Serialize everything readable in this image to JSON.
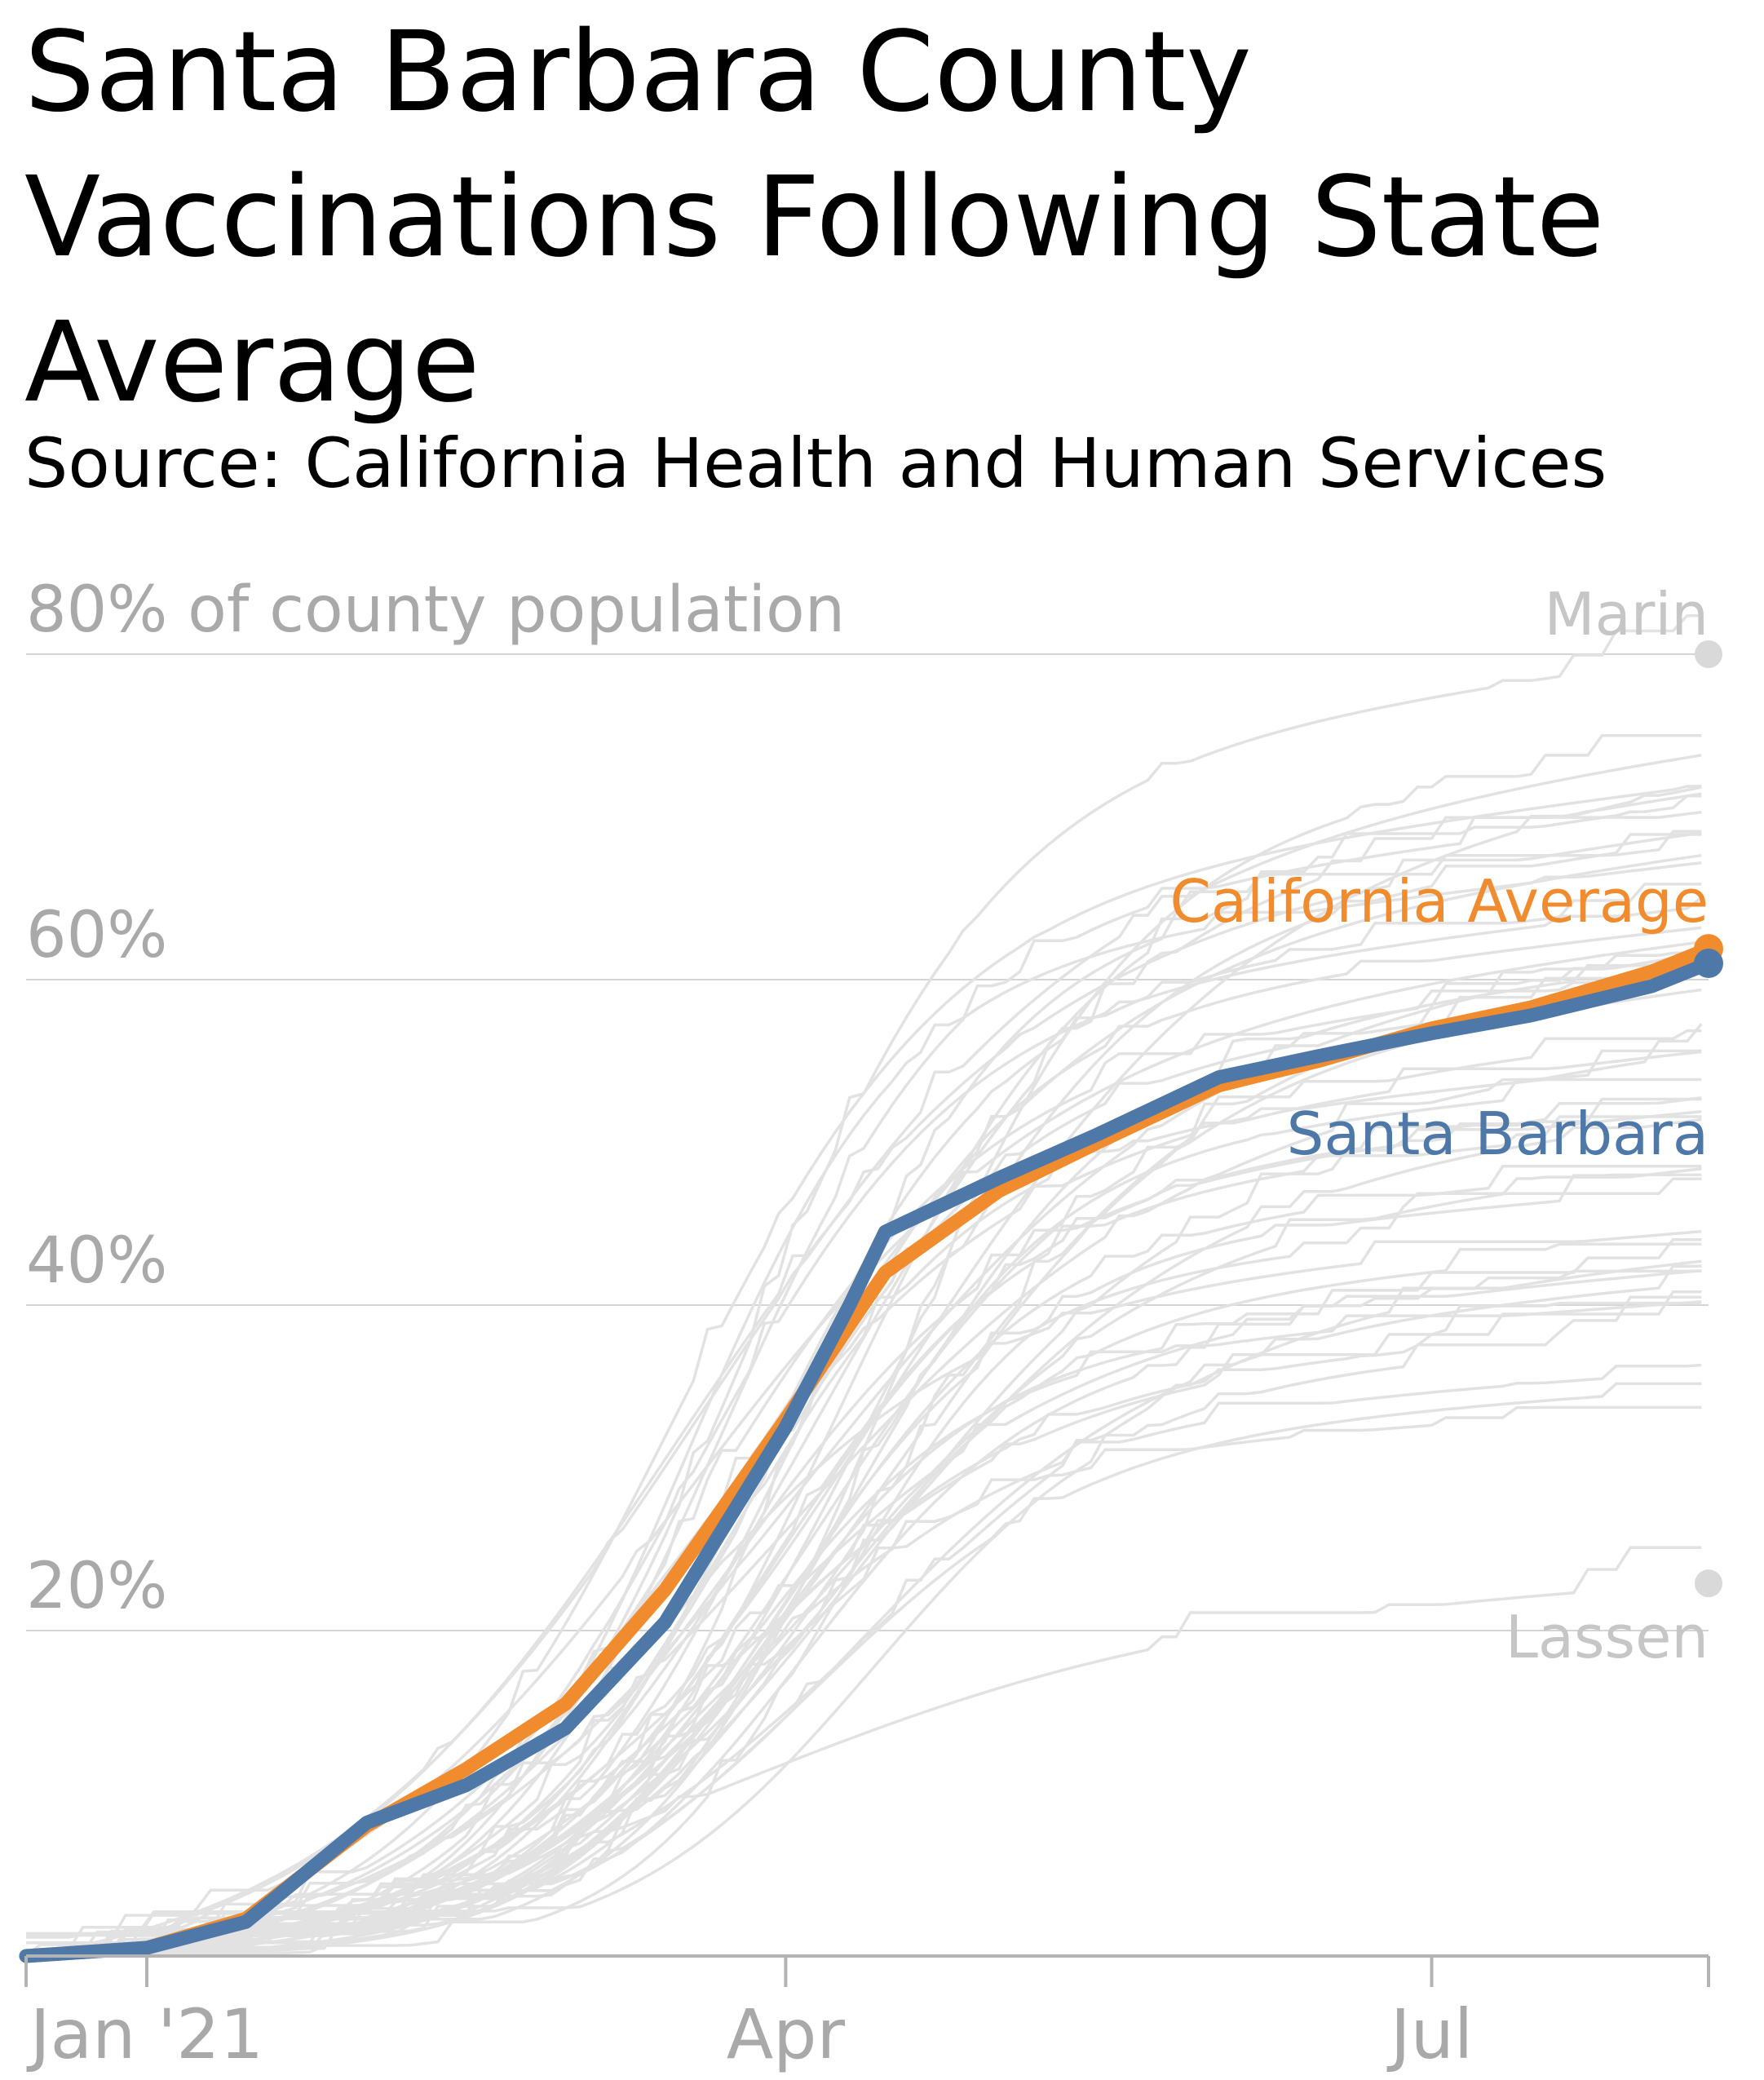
{
  "title": "Santa Barbara County Vaccinations Following State Average",
  "subtitle": "Source: California Health and Human Services",
  "colors": {
    "background": "#ffffff",
    "grid": "#d4d4d4",
    "axis": "#b3b3b3",
    "tick_label": "#a9a9a9",
    "county": "#e2e2e2",
    "county_label": "#c6c6c6",
    "california": "#f08c2e",
    "santa_barbara": "#4d78a8"
  },
  "chart_data": {
    "type": "line",
    "x_axis": {
      "range": [
        "2020-12-15",
        "2021-08-09"
      ],
      "ticks": [
        {
          "date": "2021-01-01",
          "label": "Jan '21"
        },
        {
          "date": "2021-04-01",
          "label": "Apr"
        },
        {
          "date": "2021-07-01",
          "label": "Jul"
        },
        {
          "date": "2021-08-09",
          "label": ""
        }
      ]
    },
    "y_axis": {
      "range": [
        0,
        80
      ],
      "unit": "percent of county population",
      "gridlines": [
        20,
        40,
        60,
        80
      ],
      "tick_labels": [
        {
          "value": 80,
          "label": "80% of county population"
        },
        {
          "value": 60,
          "label": "60%"
        },
        {
          "value": 40,
          "label": "40%"
        },
        {
          "value": 20,
          "label": "20%"
        }
      ]
    },
    "highlighted_series": [
      {
        "name": "California Average",
        "color_key": "california",
        "points": [
          [
            "2020-12-15",
            0
          ],
          [
            "2021-01-01",
            0.5
          ],
          [
            "2021-01-15",
            2.3
          ],
          [
            "2021-02-01",
            8.0
          ],
          [
            "2021-02-15",
            11.5
          ],
          [
            "2021-03-01",
            15.5
          ],
          [
            "2021-03-15",
            22.5
          ],
          [
            "2021-04-01",
            33.0
          ],
          [
            "2021-04-15",
            42.0
          ],
          [
            "2021-05-01",
            47.0
          ],
          [
            "2021-05-15",
            50.0
          ],
          [
            "2021-06-01",
            53.5
          ],
          [
            "2021-06-15",
            55.0
          ],
          [
            "2021-07-01",
            57.0
          ],
          [
            "2021-07-15",
            58.3
          ],
          [
            "2021-08-01",
            60.5
          ],
          [
            "2021-08-09",
            61.9
          ]
        ]
      },
      {
        "name": "Santa Barbara",
        "color_key": "santa_barbara",
        "points": [
          [
            "2020-12-15",
            0
          ],
          [
            "2021-01-01",
            0.5
          ],
          [
            "2021-01-15",
            2.1
          ],
          [
            "2021-02-01",
            8.2
          ],
          [
            "2021-02-15",
            10.5
          ],
          [
            "2021-03-01",
            14.0
          ],
          [
            "2021-03-15",
            20.5
          ],
          [
            "2021-04-01",
            32.5
          ],
          [
            "2021-04-10",
            40.0
          ],
          [
            "2021-04-15",
            44.5
          ],
          [
            "2021-05-01",
            47.8
          ],
          [
            "2021-05-15",
            50.5
          ],
          [
            "2021-06-01",
            54.0
          ],
          [
            "2021-06-15",
            55.3
          ],
          [
            "2021-07-01",
            56.7
          ],
          [
            "2021-07-15",
            57.8
          ],
          [
            "2021-08-01",
            59.6
          ],
          [
            "2021-08-09",
            61.0
          ]
        ]
      }
    ],
    "labeled_counties": [
      {
        "name": "Marin",
        "end_value": 80.0
      },
      {
        "name": "Lassen",
        "end_value": 22.9
      }
    ]
  }
}
